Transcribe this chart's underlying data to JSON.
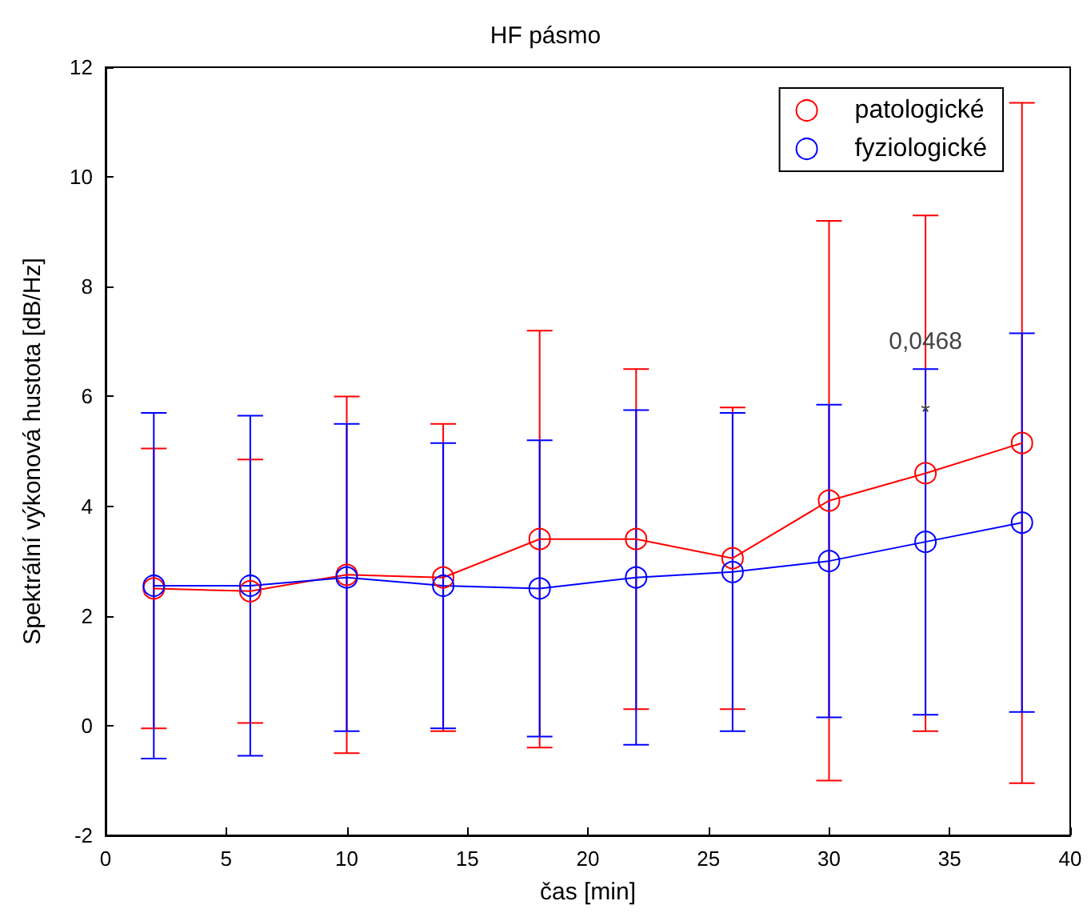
{
  "chart_data": {
    "type": "line",
    "title": "HF pásmo",
    "xlabel": "čas [min]",
    "ylabel": "Spektrální výkonová hustota [dB/Hz]",
    "x": [
      2,
      6,
      10,
      14,
      18,
      22,
      26,
      30,
      34,
      38
    ],
    "series": [
      {
        "name": "patologické",
        "color": "#ff0000",
        "values": [
          2.5,
          2.45,
          2.75,
          2.7,
          3.4,
          3.4,
          3.05,
          4.1,
          4.6,
          5.15
        ],
        "errors": [
          2.55,
          2.4,
          3.25,
          2.8,
          3.8,
          3.1,
          2.75,
          5.1,
          4.7,
          6.2
        ]
      },
      {
        "name": "fyziologické",
        "color": "#0000ff",
        "values": [
          2.55,
          2.55,
          2.7,
          2.55,
          2.5,
          2.7,
          2.8,
          3.0,
          3.35,
          3.7
        ],
        "errors": [
          3.15,
          3.1,
          2.8,
          2.6,
          2.7,
          3.05,
          2.9,
          2.85,
          3.15,
          3.45
        ]
      }
    ],
    "annotations": [
      {
        "text": "0,0468",
        "x": 34,
        "y": 7.0
      },
      {
        "text": "*",
        "x": 34,
        "y": 5.7
      }
    ],
    "xlim": [
      0,
      40
    ],
    "xticks": [
      0,
      5,
      10,
      15,
      20,
      25,
      30,
      35,
      40
    ],
    "ylim": [
      -2,
      12
    ],
    "yticks": [
      -2,
      0,
      2,
      4,
      6,
      8,
      10,
      12
    ],
    "grid": false,
    "legend": "top right",
    "marker": "circle",
    "line_style": "solid"
  }
}
